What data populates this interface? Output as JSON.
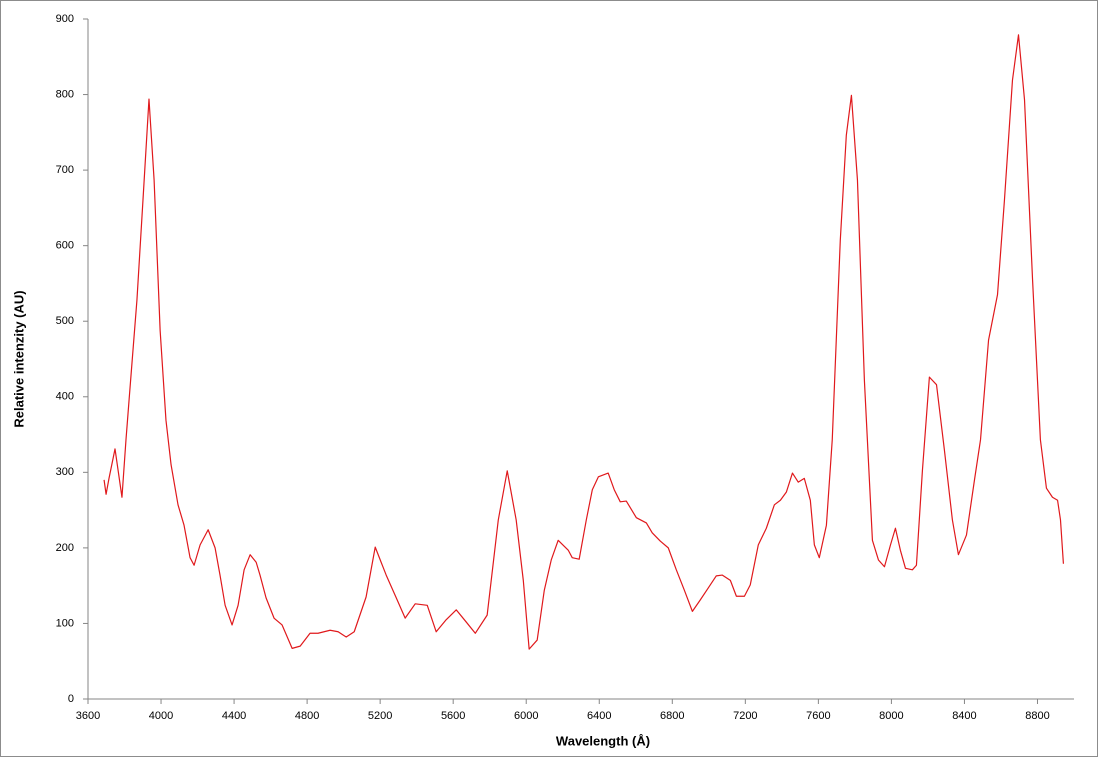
{
  "chart_data": {
    "type": "line",
    "x_label": "Wavelength (Å)",
    "y_label": "Relative intenzity (AU)",
    "xlim": [
      3600,
      9000
    ],
    "xticks": [
      3600,
      4000,
      4400,
      4800,
      5200,
      5600,
      6000,
      6400,
      6800,
      7200,
      7600,
      8000,
      8400,
      8800
    ],
    "ylim": [
      0,
      900
    ],
    "yticks": [
      0,
      100,
      200,
      300,
      400,
      500,
      600,
      700,
      800,
      900
    ],
    "grid": false,
    "series": [
      {
        "color": "#e0191c",
        "x": [
          3688,
          3699,
          3715,
          3748,
          3786,
          3808,
          3825,
          3868,
          3901,
          3934,
          3962,
          3995,
          4027,
          4055,
          4093,
          4126,
          4159,
          4181,
          4214,
          4258,
          4296,
          4323,
          4351,
          4389,
          4422,
          4455,
          4488,
          4521,
          4542,
          4575,
          4619,
          4663,
          4718,
          4762,
          4816,
          4860,
          4926,
          4970,
          5014,
          5058,
          5123,
          5173,
          5233,
          5288,
          5337,
          5392,
          5458,
          5507,
          5562,
          5617,
          5671,
          5721,
          5786,
          5847,
          5896,
          5945,
          5984,
          6016,
          6060,
          6099,
          6137,
          6175,
          6230,
          6252,
          6290,
          6329,
          6362,
          6395,
          6449,
          6482,
          6515,
          6548,
          6603,
          6658,
          6690,
          6734,
          6778,
          6822,
          6866,
          6910,
          6953,
          6997,
          7041,
          7074,
          7118,
          7151,
          7195,
          7227,
          7271,
          7315,
          7359,
          7392,
          7425,
          7458,
          7490,
          7523,
          7556,
          7578,
          7605,
          7644,
          7676,
          7720,
          7753,
          7781,
          7814,
          7852,
          7896,
          7929,
          7962,
          7995,
          8022,
          8049,
          8077,
          8115,
          8137,
          8170,
          8208,
          8247,
          8290,
          8334,
          8367,
          8411,
          8455,
          8488,
          8532,
          8581,
          8619,
          8663,
          8696,
          8729,
          8773,
          8816,
          8849,
          8882,
          8910,
          8926,
          8942
        ],
        "values": [
          290,
          271,
          292,
          331,
          267,
          343,
          396,
          528,
          660,
          794,
          687,
          488,
          369,
          310,
          257,
          230,
          187,
          177,
          204,
          224,
          200,
          164,
          124,
          98,
          124,
          171,
          191,
          181,
          164,
          134,
          107,
          98,
          67,
          70,
          87,
          87,
          91,
          89,
          82,
          89,
          135,
          201,
          164,
          134,
          107,
          126,
          124,
          89,
          105,
          118,
          102,
          87,
          111,
          237,
          302,
          237,
          157,
          66,
          78,
          144,
          184,
          210,
          197,
          187,
          185,
          237,
          277,
          294,
          299,
          277,
          261,
          262,
          240,
          233,
          220,
          209,
          200,
          171,
          144,
          116,
          131,
          147,
          163,
          164,
          157,
          136,
          136,
          151,
          204,
          226,
          257,
          263,
          274,
          299,
          287,
          292,
          263,
          204,
          187,
          230,
          343,
          607,
          746,
          799,
          687,
          422,
          210,
          184,
          175,
          204,
          226,
          197,
          173,
          171,
          177,
          303,
          426,
          416,
          330,
          237,
          191,
          217,
          290,
          343,
          475,
          535,
          660,
          819,
          879,
          793,
          555,
          343,
          279,
          267,
          263,
          237,
          179
        ]
      }
    ]
  }
}
